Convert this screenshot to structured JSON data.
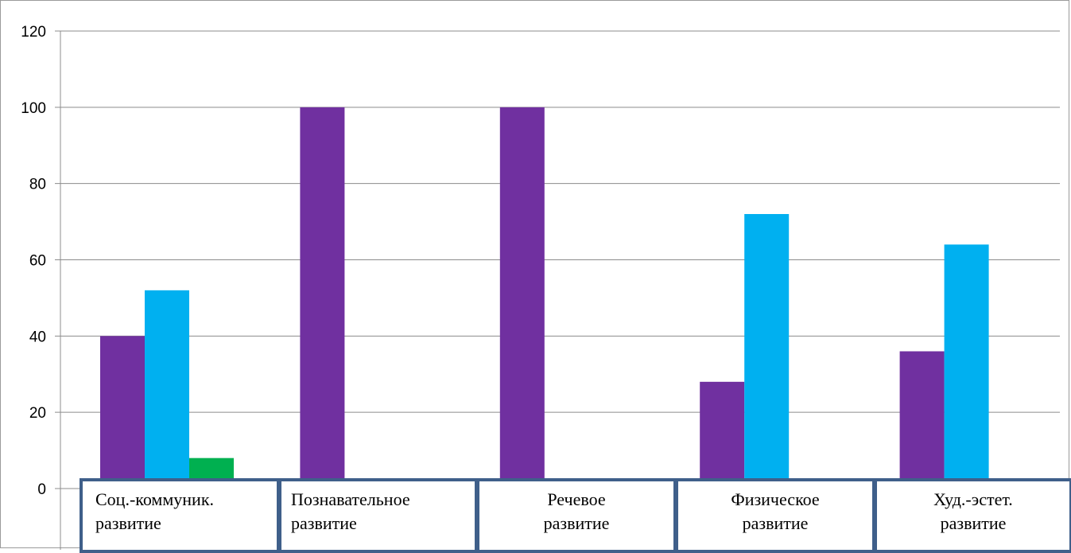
{
  "chart_data": {
    "type": "bar",
    "categories": [
      [
        "Соц.-коммуник.",
        "развитие"
      ],
      [
        "Познавательное",
        "развитие"
      ],
      [
        "Речевое",
        "развитие"
      ],
      [
        "Физическое",
        "развитие"
      ],
      [
        "Худ.-эстет.",
        "развитие"
      ]
    ],
    "series": [
      {
        "color": "#7030a0",
        "values": [
          40,
          100,
          100,
          28,
          36
        ]
      },
      {
        "color": "#00b0f0",
        "values": [
          52,
          0,
          0,
          72,
          64
        ]
      },
      {
        "color": "#00b050",
        "values": [
          8,
          0,
          0,
          0,
          0
        ]
      }
    ],
    "ylim": [
      0,
      120
    ],
    "yticks": [
      "0",
      "20",
      "40",
      "60",
      "80",
      "100",
      "120"
    ],
    "grid": true,
    "gridline_color": "#8c8c8c",
    "category_box_border_color": "#3f5f8a"
  }
}
